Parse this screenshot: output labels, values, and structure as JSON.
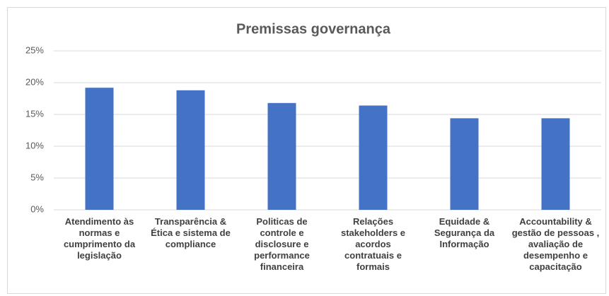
{
  "chart_data": {
    "type": "bar",
    "title": "Premissas governança",
    "categories": [
      "Atendimento às normas e cumprimento da legislação",
      "Transparência & Ética e sistema de compliance",
      "Politicas de controle e disclosure e performance financeira",
      "Relações stakeholders e acordos contratuais e formais",
      "Equidade & Segurança da Informação",
      "Accountability & gestão de pessoas , avaliação de desempenho e capacitação"
    ],
    "values": [
      19.2,
      18.8,
      16.8,
      16.4,
      14.4,
      14.4
    ],
    "color": "#4472c4",
    "ylim": [
      0,
      25
    ],
    "yticks": [
      {
        "value": 0,
        "label": "0%"
      },
      {
        "value": 5,
        "label": "5%"
      },
      {
        "value": 10,
        "label": "10%"
      },
      {
        "value": 15,
        "label": "15%"
      },
      {
        "value": 20,
        "label": "20%"
      },
      {
        "value": 25,
        "label": "25%"
      }
    ],
    "grid": true
  }
}
